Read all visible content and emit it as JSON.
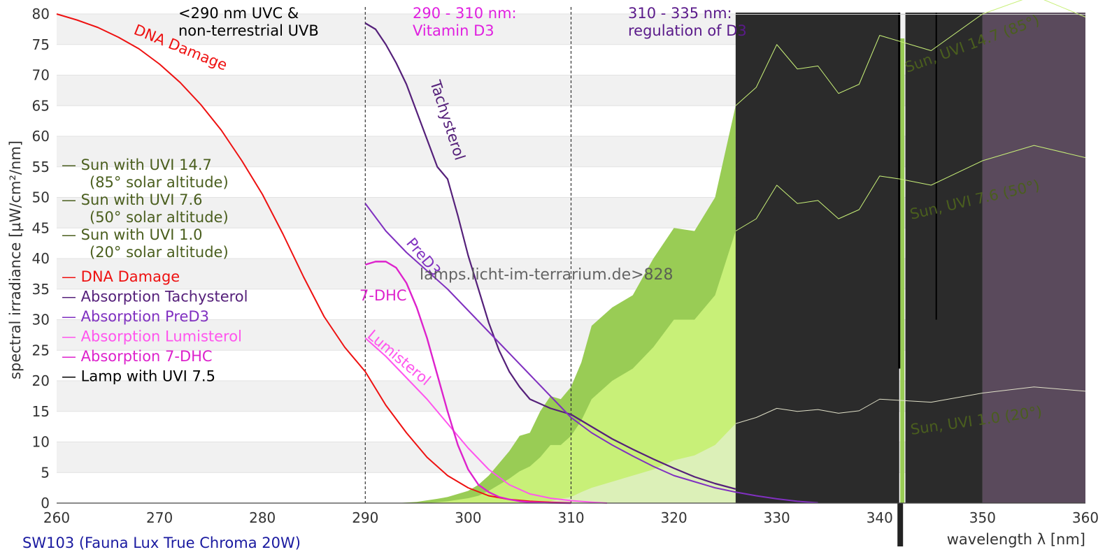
{
  "chart_data": {
    "type": "line",
    "xlabel": "wavelength λ [nm]",
    "ylabel": "spectral irradiance [µW/cm²/nm]",
    "xlim": [
      260,
      360
    ],
    "ylim": [
      0,
      80
    ],
    "x_ticks": [
      260,
      270,
      280,
      290,
      300,
      310,
      320,
      330,
      340,
      350,
      360
    ],
    "y_ticks": [
      0,
      5,
      10,
      15,
      20,
      25,
      30,
      35,
      40,
      45,
      50,
      55,
      60,
      65,
      70,
      75,
      80
    ],
    "grid": "horizontal bands",
    "legend_position": "left",
    "region_lines": [
      290,
      310
    ],
    "region_labels": [
      {
        "text": [
          "<290 nm UVC &",
          "non-terrestrial UVB"
        ],
        "color": "#000000"
      },
      {
        "text": [
          "290 - 310 nm:",
          "Vitamin D3"
        ],
        "color": "#e020e0"
      },
      {
        "text": [
          "310 - 335 nm:",
          "regulation of D3"
        ],
        "color": "#5a1a8a"
      }
    ],
    "legend": [
      {
        "label": "— Sun with UVI 14.7",
        "sub": "(85° solar altitude)",
        "color": "#4a5e1e"
      },
      {
        "label": "— Sun with UVI 7.6",
        "sub": "(50° solar altitude)",
        "color": "#4a5e1e"
      },
      {
        "label": "— Sun with UVI 1.0",
        "sub": "(20° solar altitude)",
        "color": "#4a5e1e"
      },
      {
        "label": "— DNA Damage",
        "sub": "",
        "color": "#ee1111"
      },
      {
        "label": "— Absorption Tachysterol",
        "sub": "",
        "color": "#55207a"
      },
      {
        "label": "— Absorption PreD3",
        "sub": "",
        "color": "#8030c0"
      },
      {
        "label": "— Absorption Lumisterol",
        "sub": "",
        "color": "#ff55ee"
      },
      {
        "label": "— Absorption 7-DHC",
        "sub": "",
        "color": "#dd22cc"
      },
      {
        "label": "— Lamp with UVI 7.5",
        "sub": "",
        "color": "#000000"
      }
    ],
    "curve_labels": {
      "dna": "DNA Damage",
      "tachysterol": "Tachysterol",
      "pred3": "PreD3",
      "dhc": "7-DHC",
      "lumisterol": "Lumisterol",
      "sun_high": "Sun, UVI 14.7 (85°)",
      "sun_mid": "Sun, UVI 7.6 (50°)",
      "sun_low": "Sun, UVI 1.0 (20°)"
    },
    "watermark": "lamps.licht-im-terrarium.de>828",
    "caption": "SW103 (Fauna Lux True Chroma 20W)",
    "series": [
      {
        "key": "dna",
        "color": "#ee1111",
        "width": 2,
        "x": [
          260,
          262,
          264,
          266,
          268,
          270,
          272,
          274,
          276,
          278,
          280,
          282,
          284,
          286,
          288,
          290,
          292,
          294,
          296,
          298,
          300,
          302,
          304,
          306,
          308,
          310
        ],
        "y": [
          80,
          79,
          77.8,
          76.2,
          74.3,
          71.8,
          68.8,
          65.2,
          61,
          56,
          50.5,
          44,
          37,
          30.5,
          25.5,
          21.5,
          16,
          11.5,
          7.5,
          4.5,
          2.5,
          1.2,
          0.6,
          0.3,
          0.15,
          0.05
        ]
      },
      {
        "key": "tachysterol",
        "color": "#55207a",
        "width": 2.2,
        "x": [
          290,
          291,
          292,
          293,
          294,
          295,
          296,
          297,
          298,
          299,
          300,
          301,
          302,
          303,
          304,
          305,
          306,
          308,
          310,
          312,
          314,
          316,
          318,
          320,
          322,
          324,
          326
        ],
        "y": [
          78.5,
          77.5,
          75,
          72,
          68.5,
          64,
          59.5,
          55,
          53,
          47,
          40.5,
          35,
          29.5,
          25,
          21.5,
          19,
          17,
          15.5,
          14.5,
          12.5,
          10.5,
          8.8,
          7.2,
          5.7,
          4.3,
          3.2,
          2.3
        ]
      },
      {
        "key": "pred3",
        "color": "#8030c0",
        "width": 2,
        "x": [
          290,
          292,
          294,
          296,
          298,
          300,
          302,
          304,
          306,
          308,
          310,
          312,
          314,
          316,
          318,
          320,
          322,
          324,
          326,
          328,
          330,
          332,
          334
        ],
        "y": [
          49,
          44.5,
          41,
          38,
          35,
          31.5,
          28,
          24.5,
          21,
          17.5,
          14,
          11.5,
          9.5,
          7.7,
          6,
          4.5,
          3.5,
          2.5,
          1.8,
          1.2,
          0.7,
          0.3,
          0.05
        ]
      },
      {
        "key": "lumisterol",
        "color": "#ff55ee",
        "width": 2,
        "x": [
          290,
          292,
          294,
          296,
          298,
          300,
          302,
          304,
          306,
          308,
          310,
          312,
          313.5
        ],
        "y": [
          27,
          24,
          20.5,
          17,
          13,
          9,
          5.5,
          3,
          1.5,
          0.8,
          0.4,
          0.15,
          0
        ]
      },
      {
        "key": "dhc",
        "color": "#dd22cc",
        "width": 2.4,
        "x": [
          290,
          291,
          292,
          293,
          294,
          295,
          296,
          297,
          298,
          299,
          300,
          301,
          302,
          303,
          304,
          305,
          306,
          308,
          310
        ],
        "y": [
          39,
          39.5,
          39.5,
          38.5,
          36,
          32,
          27,
          21,
          15,
          9.5,
          5.5,
          3,
          1.8,
          1,
          0.6,
          0.3,
          0.15,
          0.05,
          0
        ]
      },
      {
        "key": "sun_high",
        "color": "#c8f078",
        "width": 1,
        "x": [
          326,
          328,
          330,
          332,
          334,
          336,
          338,
          340,
          342,
          345,
          350,
          355,
          360
        ],
        "y": [
          65,
          68,
          75,
          71,
          71.5,
          67,
          68.5,
          76.5,
          75.5,
          74,
          80,
          83,
          79.5
        ]
      },
      {
        "key": "sun_mid",
        "color": "#c8f078",
        "width": 1,
        "x": [
          326,
          328,
          330,
          332,
          334,
          336,
          338,
          340,
          342,
          345,
          350,
          355,
          360
        ],
        "y": [
          44.5,
          46.5,
          52,
          49,
          49.5,
          46.5,
          48,
          53.5,
          53,
          52,
          56,
          58.5,
          56.5
        ]
      },
      {
        "key": "sun_low",
        "color": "#e0e0c8",
        "width": 1,
        "x": [
          326,
          328,
          330,
          332,
          334,
          336,
          338,
          340,
          342,
          345,
          350,
          355,
          360
        ],
        "y": [
          13,
          14,
          15.5,
          15,
          15.3,
          14.7,
          15.1,
          17,
          16.8,
          16.5,
          18,
          19,
          18.3
        ]
      }
    ],
    "fills": [
      {
        "key": "sun_high_fill",
        "color": "#99cc55",
        "x": [
          293,
          295,
          297,
          298,
          299,
          300,
          301,
          302,
          303,
          304,
          305,
          306,
          307,
          308,
          309,
          310,
          311,
          312,
          314,
          316,
          318,
          320,
          322,
          324,
          326
        ],
        "y": [
          0,
          0.2,
          0.7,
          1,
          1.5,
          2,
          3,
          4.5,
          6.5,
          8.5,
          11,
          11.5,
          15,
          17.5,
          17,
          19,
          23,
          29,
          32,
          34,
          40,
          45,
          44.5,
          50,
          65
        ]
      },
      {
        "key": "sun_mid_fill",
        "color": "#c8f078",
        "x": [
          296,
          298,
          300,
          301,
          302,
          303,
          304,
          305,
          306,
          307,
          308,
          309,
          310,
          311,
          312,
          314,
          316,
          318,
          320,
          322,
          324,
          326
        ],
        "y": [
          0,
          0.3,
          0.8,
          1.2,
          2,
          3,
          4,
          5.2,
          6,
          7.5,
          9.5,
          9.5,
          11,
          13.5,
          17,
          20,
          22,
          25.5,
          30,
          30,
          34,
          44.5
        ]
      },
      {
        "key": "sun_low_fill",
        "color": "#dcf0b8",
        "x": [
          307,
          308,
          309,
          310,
          311,
          312,
          314,
          316,
          318,
          320,
          322,
          324,
          326
        ],
        "y": [
          0,
          0.3,
          0.7,
          1,
          1.8,
          2.5,
          3.5,
          4.5,
          5.5,
          7,
          7.8,
          9.5,
          13
        ]
      }
    ],
    "dark_regions": [
      {
        "x0": 326,
        "x1": 341.9,
        "color": "#2b2b2b"
      },
      {
        "x0": 342.5,
        "x1": 350,
        "color": "#2b2b2b"
      },
      {
        "x0": 350,
        "x1": 360,
        "color": "#5a4a5c"
      }
    ],
    "lamp_spikes": [
      {
        "x": 341.9,
        "y": 22,
        "color": "#000000",
        "width": 3
      },
      {
        "x": 345.5,
        "y": 30,
        "color": "#000000",
        "width": 2
      }
    ],
    "green_strip": {
      "x": 342.2,
      "color": "#99cc55"
    }
  }
}
